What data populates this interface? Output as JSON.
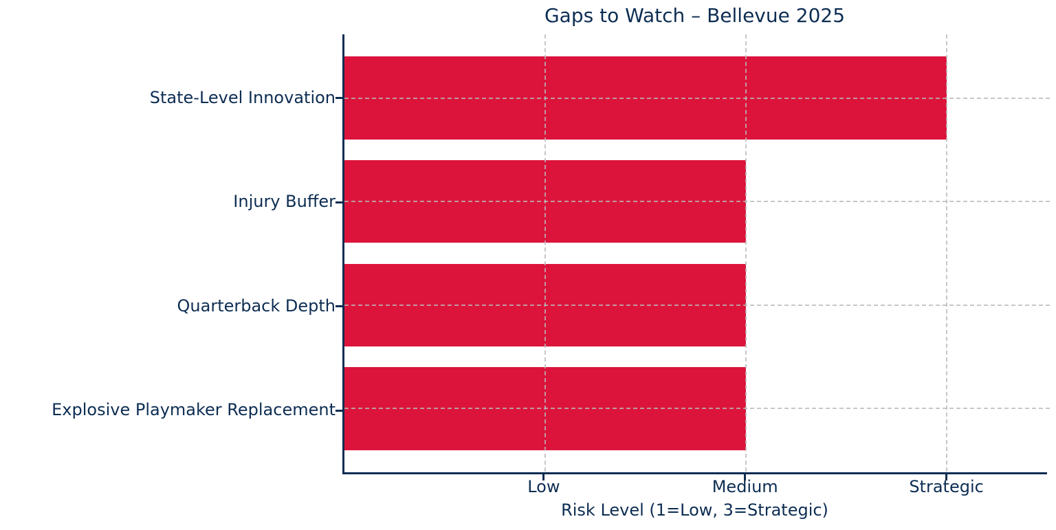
{
  "chart_data": {
    "type": "bar",
    "orientation": "horizontal",
    "title": "Gaps to Watch – Bellevue 2025",
    "xlabel": "Risk Level (1=Low, 3=Strategic)",
    "ylabel": "",
    "categories": [
      "State-Level Innovation",
      "Injury Buffer",
      "Quarterback Depth",
      "Explosive Playmaker Replacement"
    ],
    "values": [
      3,
      2,
      2,
      2
    ],
    "xlim": [
      0,
      3.5
    ],
    "xticks": [
      {
        "value": 1,
        "label": "Low"
      },
      {
        "value": 2,
        "label": "Medium"
      },
      {
        "value": 3,
        "label": "Strategic"
      }
    ],
    "legend": "none",
    "grid": "dashed vertical at x ticks and horizontal at category centers, drawn over bars",
    "spines": "left and bottom only",
    "colors": {
      "bar": "#dc143c",
      "text": "#0d2d52",
      "spine": "#0d2d52",
      "grid": "#b9b9b9",
      "background": "#ffffff"
    }
  }
}
